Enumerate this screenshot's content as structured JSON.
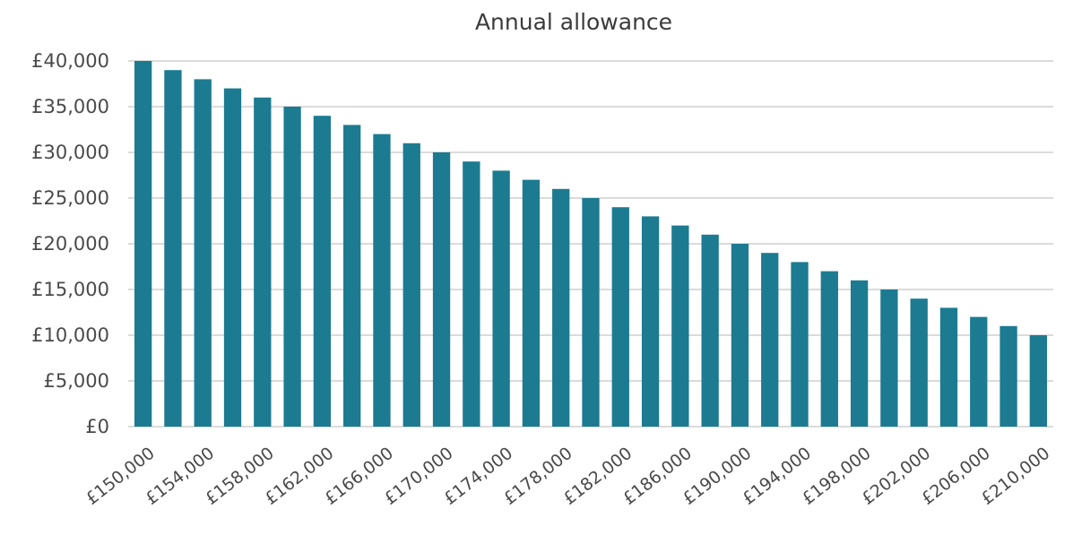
{
  "chart_data": {
    "type": "bar",
    "title": "Annual allowance",
    "xlabel": "",
    "ylabel": "",
    "ylim": [
      0,
      40000
    ],
    "yticks": [
      0,
      5000,
      10000,
      15000,
      20000,
      25000,
      30000,
      35000,
      40000
    ],
    "ytick_labels": [
      "£0",
      "£5,000",
      "£10,000",
      "£15,000",
      "£20,000",
      "£25,000",
      "£30,000",
      "£35,000",
      "£40,000"
    ],
    "categories": [
      "£150,000",
      "£152,000",
      "£154,000",
      "£156,000",
      "£158,000",
      "£160,000",
      "£162,000",
      "£164,000",
      "£166,000",
      "£168,000",
      "£170,000",
      "£172,000",
      "£174,000",
      "£176,000",
      "£178,000",
      "£180,000",
      "£182,000",
      "£184,000",
      "£186,000",
      "£188,000",
      "£190,000",
      "£192,000",
      "£194,000",
      "£196,000",
      "£198,000",
      "£200,000",
      "£202,000",
      "£204,000",
      "£206,000",
      "£208,000",
      "£210,000"
    ],
    "visible_xtick_labels": [
      "£150,000",
      "£154,000",
      "£158,000",
      "£162,000",
      "£166,000",
      "£170,000",
      "£174,000",
      "£178,000",
      "£182,000",
      "£186,000",
      "£190,000",
      "£194,000",
      "£198,000",
      "£202,000",
      "£206,000",
      "£210,000"
    ],
    "values": [
      40000,
      39000,
      38000,
      37000,
      36000,
      35000,
      34000,
      33000,
      32000,
      31000,
      30000,
      29000,
      28000,
      27000,
      26000,
      25000,
      24000,
      23000,
      22000,
      21000,
      20000,
      19000,
      18000,
      17000,
      16000,
      15000,
      14000,
      13000,
      12000,
      11000,
      10000
    ],
    "bar_color": "#1c7b91",
    "grid": true,
    "legend": false
  }
}
